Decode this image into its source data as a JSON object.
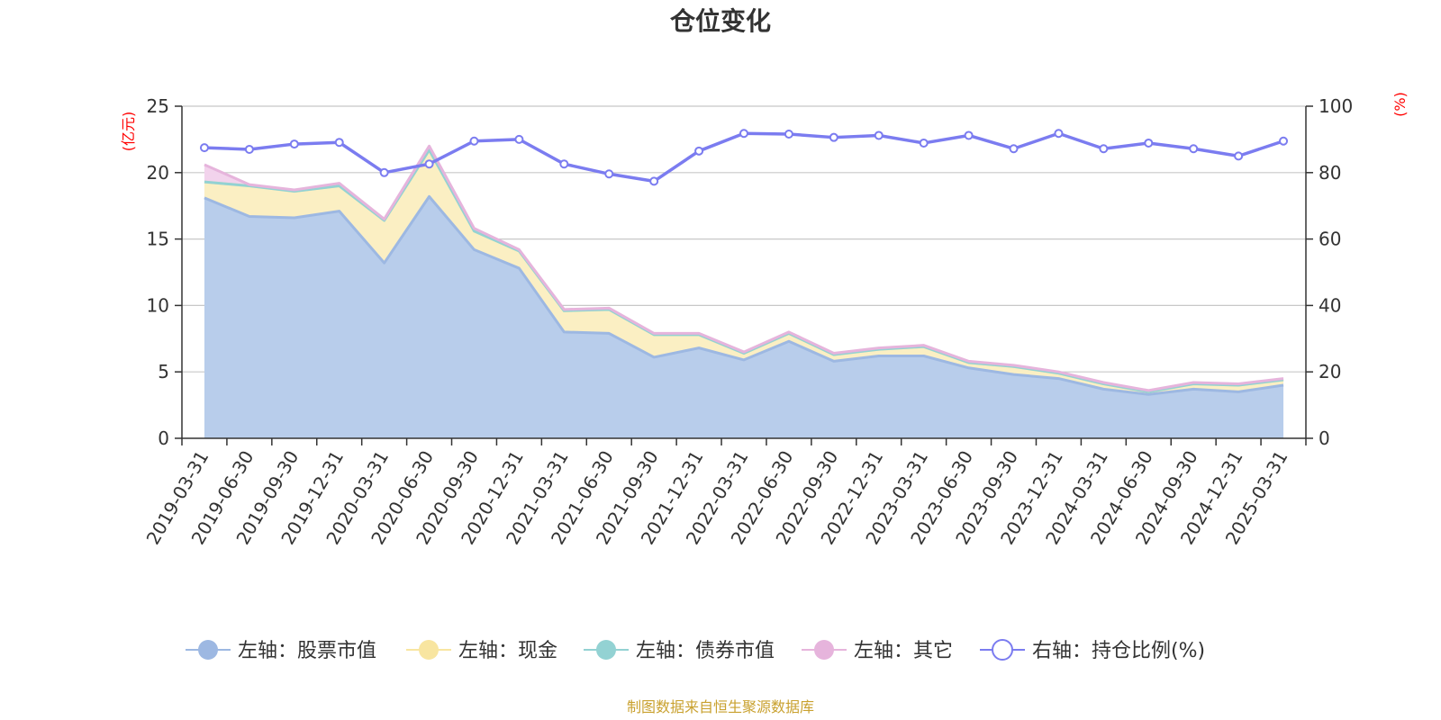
{
  "chart_data": {
    "type": "area",
    "title": "仓位变化",
    "left_axis": {
      "unit": "(亿元)",
      "ylim": [
        0,
        25
      ],
      "ticks": [
        "0",
        "5",
        "10",
        "15",
        "20",
        "25"
      ]
    },
    "right_axis": {
      "unit": "(%)",
      "ylim": [
        0,
        100
      ],
      "ticks": [
        "0",
        "20",
        "40",
        "60",
        "80",
        "100"
      ]
    },
    "categories": [
      "2019-03-31",
      "2019-06-30",
      "2019-09-30",
      "2019-12-31",
      "2020-03-31",
      "2020-06-30",
      "2020-09-30",
      "2020-12-31",
      "2021-03-31",
      "2021-06-30",
      "2021-09-30",
      "2021-12-31",
      "2022-03-31",
      "2022-06-30",
      "2022-09-30",
      "2022-12-31",
      "2023-03-31",
      "2023-06-30",
      "2023-09-30",
      "2023-12-31",
      "2024-03-31",
      "2024-06-30",
      "2024-09-30",
      "2024-12-31",
      "2025-03-31"
    ],
    "series": [
      {
        "name": "左轴：股票市值",
        "axis": "left",
        "stack": true,
        "color": "#9db8e2",
        "fill": "#b8cdeb",
        "values": [
          18.1,
          16.7,
          16.6,
          17.1,
          13.2,
          18.2,
          14.2,
          12.8,
          8.0,
          7.9,
          6.1,
          6.8,
          5.9,
          7.3,
          5.8,
          6.2,
          6.2,
          5.3,
          4.8,
          4.5,
          3.7,
          3.3,
          3.7,
          3.5,
          4.0
        ]
      },
      {
        "name": "左轴：现金",
        "axis": "left",
        "stack": true,
        "color": "#f8e5a0",
        "fill": "#fbefc3",
        "values": [
          1.2,
          2.3,
          2.0,
          1.9,
          3.2,
          3.5,
          1.4,
          1.3,
          1.6,
          1.8,
          1.7,
          1.0,
          0.5,
          0.6,
          0.5,
          0.5,
          0.7,
          0.4,
          0.6,
          0.4,
          0.4,
          0.2,
          0.4,
          0.5,
          0.4
        ]
      },
      {
        "name": "左轴：债券市值",
        "axis": "left",
        "stack": true,
        "color": "#93d2d3",
        "fill": "#b2e0e0",
        "values": [
          0,
          0,
          0,
          0,
          0,
          0,
          0,
          0,
          0,
          0,
          0,
          0,
          0,
          0,
          0,
          0,
          0,
          0,
          0,
          0,
          0,
          0,
          0,
          0,
          0
        ]
      },
      {
        "name": "左轴：其它",
        "axis": "left",
        "stack": true,
        "color": "#e6b4dc",
        "fill": "#f2d3ec",
        "values": [
          1.3,
          0.1,
          0.1,
          0.2,
          0.1,
          0.3,
          0.2,
          0.1,
          0.1,
          0.1,
          0.1,
          0.1,
          0.1,
          0.1,
          0.1,
          0.1,
          0.1,
          0.1,
          0.1,
          0.1,
          0.1,
          0.1,
          0.1,
          0.1,
          0.1
        ]
      },
      {
        "name": "右轴：持仓比例(%)",
        "axis": "right",
        "stack": false,
        "color": "#7b7cf0",
        "marker": "hollow-circle",
        "values": [
          87.5,
          87.0,
          88.6,
          89.1,
          80.0,
          82.6,
          89.5,
          90.0,
          82.6,
          79.6,
          77.4,
          86.5,
          91.8,
          91.6,
          90.6,
          91.2,
          88.9,
          91.2,
          87.2,
          91.8,
          87.2,
          88.9,
          87.2,
          85.0,
          89.5
        ]
      }
    ],
    "legend_position": "bottom",
    "grid": true
  },
  "source_note": "制图数据来自恒生聚源数据库"
}
